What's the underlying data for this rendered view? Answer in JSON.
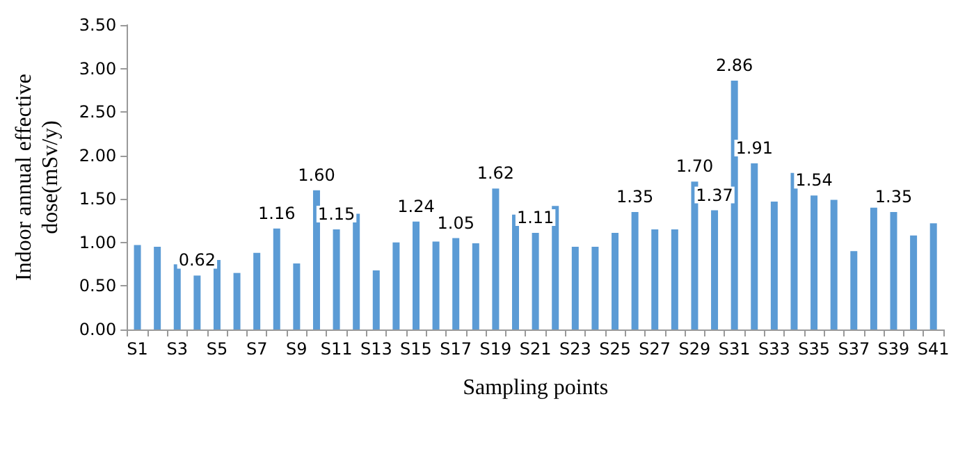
{
  "chart_data": {
    "type": "bar",
    "xlabel": "Sampling points",
    "ylabel": "Indoor annual effective\ndose(mSv/y)",
    "categories": [
      "S1",
      null,
      "S3",
      null,
      "S5",
      null,
      "S7",
      null,
      "S9",
      null,
      "S11",
      null,
      "S13",
      null,
      "S15",
      null,
      "S17",
      null,
      "S19",
      null,
      "S21",
      null,
      "S23",
      null,
      "S25",
      null,
      "S27",
      null,
      "S29",
      null,
      "S31",
      null,
      "S33",
      null,
      "S35",
      null,
      "S37",
      null,
      "S39",
      null,
      "S41"
    ],
    "values": [
      0.97,
      0.95,
      0.75,
      0.62,
      0.8,
      0.65,
      0.88,
      1.16,
      0.76,
      1.6,
      1.15,
      1.33,
      0.68,
      1.0,
      1.24,
      1.01,
      1.05,
      0.99,
      1.62,
      1.32,
      1.11,
      1.42,
      0.95,
      0.95,
      1.11,
      1.35,
      1.15,
      1.15,
      1.7,
      1.37,
      2.86,
      1.91,
      1.47,
      1.8,
      1.54,
      1.49,
      0.9,
      1.4,
      1.35,
      1.08,
      1.22
    ],
    "value_labels": [
      null,
      null,
      null,
      "0.62",
      null,
      null,
      null,
      "1.16",
      null,
      "1.60",
      "1.15",
      null,
      null,
      null,
      "1.24",
      null,
      "1.05",
      null,
      "1.62",
      null,
      "1.11",
      null,
      null,
      null,
      null,
      "1.35",
      null,
      null,
      "1.70",
      "1.37",
      "2.86",
      "1.91",
      null,
      null,
      "1.54",
      null,
      null,
      null,
      "1.35",
      null,
      null
    ],
    "color": "#5b9bd5",
    "ylim": [
      0,
      3.5
    ],
    "yticks": [
      {
        "value": 0,
        "label": "0.00"
      },
      {
        "value": 0.5,
        "label": "0.50"
      },
      {
        "value": 1,
        "label": "1.00"
      },
      {
        "value": 1.5,
        "label": "1.50"
      },
      {
        "value": 2,
        "label": "2.00"
      },
      {
        "value": 2.5,
        "label": "2.50"
      },
      {
        "value": 3,
        "label": "3.00"
      },
      {
        "value": 3.5,
        "label": "3.50"
      }
    ],
    "grid": false
  }
}
